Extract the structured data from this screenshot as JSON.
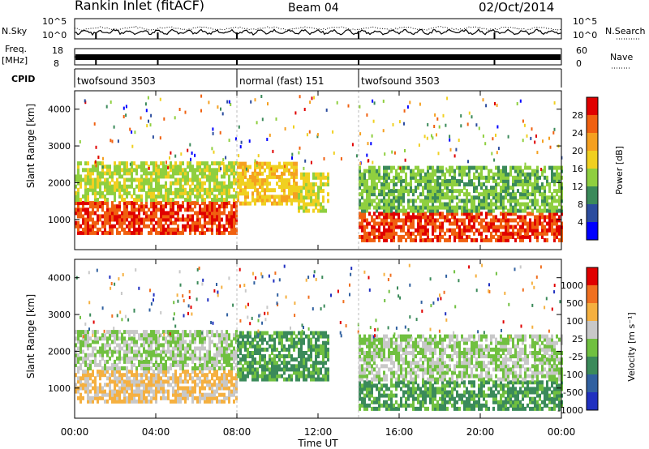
{
  "header": {
    "title": "Rankin Inlet (fitACF)",
    "beam": "Beam 04",
    "date": "02/Oct/2014"
  },
  "noise_panel": {
    "left_label": "N.Sky",
    "right_label": "N.Search",
    "tick_top": "10^5",
    "tick_bottom": "10^0"
  },
  "freq_panel": {
    "left_label_line1": "Freq.",
    "left_label_line2": "[MHz]",
    "left_ticks": [
      "18",
      "8"
    ],
    "right_label": "Nave",
    "right_ticks": [
      "60",
      "0"
    ]
  },
  "cpid_panel": {
    "label": "CPID",
    "segments": [
      {
        "text": "twofsound 3503",
        "start_hour": 0,
        "end_hour": 8
      },
      {
        "text": "normal (fast) 151",
        "start_hour": 8,
        "end_hour": 14
      },
      {
        "text": "twofsound 3503",
        "start_hour": 14,
        "end_hour": 24
      }
    ]
  },
  "x_axis": {
    "label": "Time UT",
    "tick_labels": [
      "00:00",
      "04:00",
      "08:00",
      "12:00",
      "16:00",
      "20:00",
      "00:00"
    ],
    "range_hours": [
      0,
      24
    ]
  },
  "power_panel": {
    "ylabel": "Slant Range [km]",
    "y_ticks": [
      "1000",
      "2000",
      "3000",
      "4000"
    ],
    "ylim": [
      180,
      4500
    ],
    "colorbar_label": "Power [dB]",
    "colorbar_ticks": [
      "4",
      "8",
      "12",
      "16",
      "20",
      "24",
      "28"
    ]
  },
  "velocity_panel": {
    "ylabel": "Slant Range [km]",
    "y_ticks": [
      "1000",
      "2000",
      "3000",
      "4000"
    ],
    "ylim": [
      180,
      4500
    ],
    "colorbar_label": "Velocity [m s⁻¹]",
    "colorbar_ticks": [
      "1000",
      "500",
      "100",
      "25",
      "-25",
      "-100",
      "-500",
      "-1000"
    ]
  },
  "chart_data": [
    {
      "type": "line",
      "title": "",
      "x_range_hours": [
        0,
        24
      ],
      "series": [
        {
          "name": "N.Sky",
          "style": "solid"
        },
        {
          "name": "N.Search",
          "style": "dotted"
        }
      ]
    },
    {
      "type": "bar",
      "series": [
        {
          "name": "Freq.",
          "ylim": [
            8,
            18
          ],
          "approx_value": 12
        },
        {
          "name": "Nave",
          "ylim": [
            0,
            60
          ],
          "style": "dotted"
        }
      ]
    },
    {
      "type": "heatmap",
      "xlabel": "Time UT",
      "ylabel": "Slant Range [km]",
      "xlim_hours": [
        0,
        24
      ],
      "ylim": [
        180,
        4500
      ],
      "colorbar": {
        "label": "Power [dB]",
        "range": [
          0,
          30
        ],
        "ticks": [
          4,
          8,
          12,
          16,
          20,
          24,
          28
        ]
      },
      "regions": [
        {
          "t0": 0.0,
          "t1": 8.0,
          "r0": 600,
          "r1": 1500,
          "value": 26
        },
        {
          "t0": 0.0,
          "t1": 8.0,
          "r0": 1500,
          "r1": 2500,
          "value": 14
        },
        {
          "t0": 8.0,
          "t1": 11.0,
          "r0": 1400,
          "r1": 2500,
          "value": 18
        },
        {
          "t0": 11.0,
          "t1": 12.5,
          "r0": 1200,
          "r1": 2200,
          "value": 16
        },
        {
          "t0": 14.0,
          "t1": 24.0,
          "r0": 400,
          "r1": 1200,
          "value": 26
        },
        {
          "t0": 14.0,
          "t1": 24.0,
          "r0": 1200,
          "r1": 2400,
          "value": 12
        }
      ],
      "colors": [
        "#0000ff",
        "#2b4c9e",
        "#3b8a5a",
        "#8fcf3f",
        "#f0d020",
        "#f5a020",
        "#f06010",
        "#e00000"
      ]
    },
    {
      "type": "heatmap",
      "xlabel": "Time UT",
      "ylabel": "Slant Range [km]",
      "xlim_hours": [
        0,
        24
      ],
      "ylim": [
        180,
        4500
      ],
      "colorbar": {
        "label": "Velocity [m s⁻¹]",
        "range": [
          -1000,
          1000
        ],
        "ticks": [
          1000,
          500,
          100,
          25,
          -25,
          -100,
          -500,
          -1000
        ]
      },
      "regions": [
        {
          "t0": 0.0,
          "t1": 8.0,
          "r0": 600,
          "r1": 1500,
          "value": 300
        },
        {
          "t0": 0.0,
          "t1": 8.0,
          "r0": 1500,
          "r1": 2500,
          "value": 0
        },
        {
          "t0": 8.0,
          "t1": 12.5,
          "r0": 1200,
          "r1": 2500,
          "value": -300
        },
        {
          "t0": 14.0,
          "t1": 24.0,
          "r0": 400,
          "r1": 1200,
          "value": -300
        },
        {
          "t0": 14.0,
          "t1": 24.0,
          "r0": 1200,
          "r1": 2400,
          "value": 0
        }
      ],
      "colors": [
        "#2030c0",
        "#3060a0",
        "#3b8a5a",
        "#70c040",
        "#c8c8c8",
        "#f5b040",
        "#f07020",
        "#e00000"
      ]
    }
  ]
}
